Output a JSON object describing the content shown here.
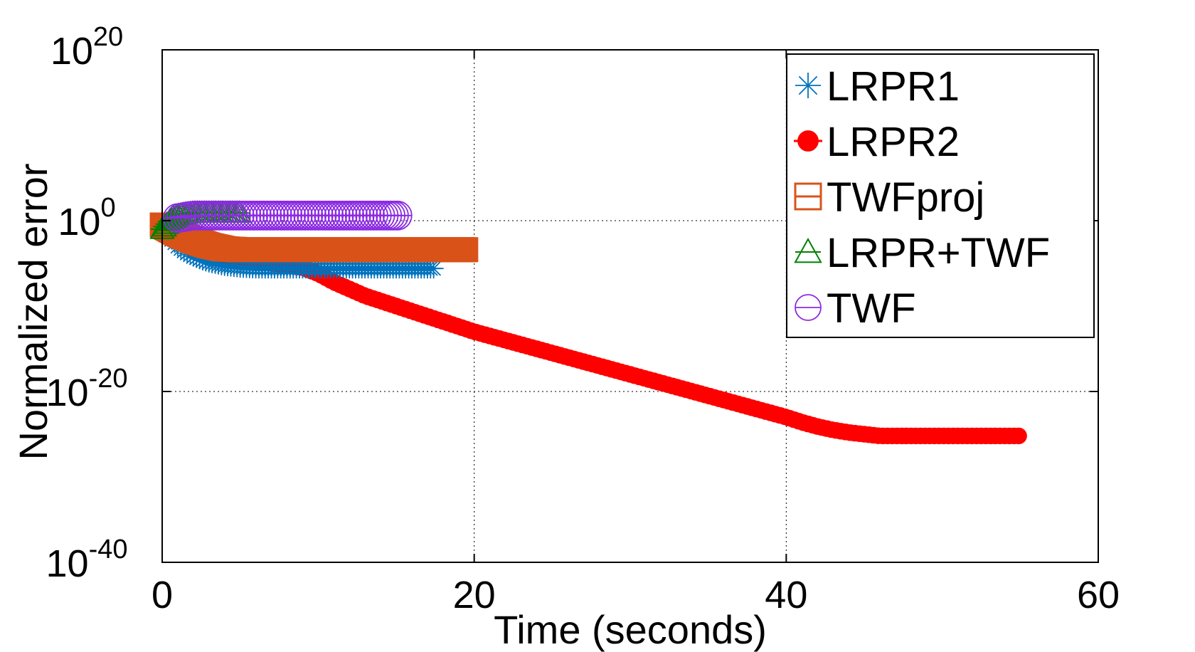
{
  "chart_data": {
    "type": "line",
    "xlabel": "Time (seconds)",
    "ylabel": "Normalized error",
    "xlim": [
      0,
      60
    ],
    "ylim_exponent": [
      -40,
      20
    ],
    "yscale": "log",
    "grid": true,
    "legend_position": "top-right",
    "x_ticks": [
      "0",
      "20",
      "40",
      "60"
    ],
    "y_ticks": [
      {
        "base": "10",
        "exp": "-40",
        "value": -40
      },
      {
        "base": "10",
        "exp": "-20",
        "value": -20
      },
      {
        "base": "10",
        "exp": "0",
        "value": 0
      },
      {
        "base": "10",
        "exp": "20",
        "value": 20
      }
    ],
    "series": [
      {
        "name": "LRPR1",
        "color": "#0072BD",
        "marker": "asterisk",
        "x": [
          0,
          0.5,
          1,
          1.5,
          2,
          2.5,
          3,
          4,
          5,
          6,
          7,
          8,
          9,
          10,
          11,
          12,
          13,
          14,
          15,
          16,
          17.5
        ],
        "log10_y": [
          -1.0,
          -2.0,
          -3.0,
          -3.7,
          -4.2,
          -4.6,
          -4.9,
          -5.3,
          -5.5,
          -5.6,
          -5.6,
          -5.6,
          -5.6,
          -5.6,
          -5.6,
          -5.6,
          -5.6,
          -5.6,
          -5.6,
          -5.6,
          -5.6
        ]
      },
      {
        "name": "LRPR2",
        "color": "#FF0000",
        "marker": "filled-circle",
        "x": [
          0,
          1,
          2,
          3,
          4,
          5,
          6,
          7,
          8,
          9,
          10,
          11,
          12,
          13,
          14,
          15,
          16,
          17,
          18,
          19,
          20,
          22,
          24,
          26,
          28,
          30,
          32,
          34,
          36,
          38,
          40,
          41,
          42,
          43,
          44,
          45,
          46,
          47,
          48,
          50,
          52,
          54,
          55
        ],
        "log10_y": [
          -0.5,
          -2.3,
          -3.2,
          -3.8,
          -4.2,
          -4.5,
          -4.8,
          -5.0,
          -5.2,
          -5.5,
          -6.2,
          -7.2,
          -8.0,
          -8.8,
          -9.4,
          -10.0,
          -10.6,
          -11.2,
          -11.8,
          -12.4,
          -13.0,
          -14.0,
          -15.0,
          -16.0,
          -17.0,
          -18.0,
          -19.0,
          -20.0,
          -21.0,
          -22.0,
          -23.0,
          -23.6,
          -24.1,
          -24.5,
          -24.8,
          -25.0,
          -25.2,
          -25.2,
          -25.2,
          -25.2,
          -25.2,
          -25.2,
          -25.2
        ]
      },
      {
        "name": "TWFproj",
        "color": "#D95319",
        "marker": "square",
        "x": [
          0,
          1,
          2,
          3,
          4,
          5,
          6,
          8,
          10,
          12,
          14,
          16,
          18,
          19.5
        ],
        "log10_y": [
          -0.5,
          -1.5,
          -2.3,
          -2.9,
          -3.3,
          -3.4,
          -3.4,
          -3.4,
          -3.4,
          -3.4,
          -3.4,
          -3.4,
          -3.4,
          -3.4
        ]
      },
      {
        "name": "LRPR+TWF",
        "color": "#008000",
        "marker": "triangle",
        "x": [
          0,
          0.5,
          1,
          1.5,
          2,
          2.5,
          3,
          4,
          5
        ],
        "log10_y": [
          -1.0,
          0.0,
          0.6,
          0.8,
          0.9,
          0.9,
          0.9,
          0.9,
          0.9
        ]
      },
      {
        "name": "TWF",
        "color": "#8B2BE2",
        "marker": "circle-bar",
        "x": [
          1,
          2,
          3,
          4,
          5,
          6,
          7,
          8,
          9,
          10,
          11,
          12,
          13,
          14,
          15.2
        ],
        "log10_y": [
          0.3,
          0.6,
          0.6,
          0.6,
          0.6,
          0.6,
          0.6,
          0.6,
          0.6,
          0.6,
          0.6,
          0.6,
          0.6,
          0.6,
          0.6
        ]
      }
    ]
  }
}
